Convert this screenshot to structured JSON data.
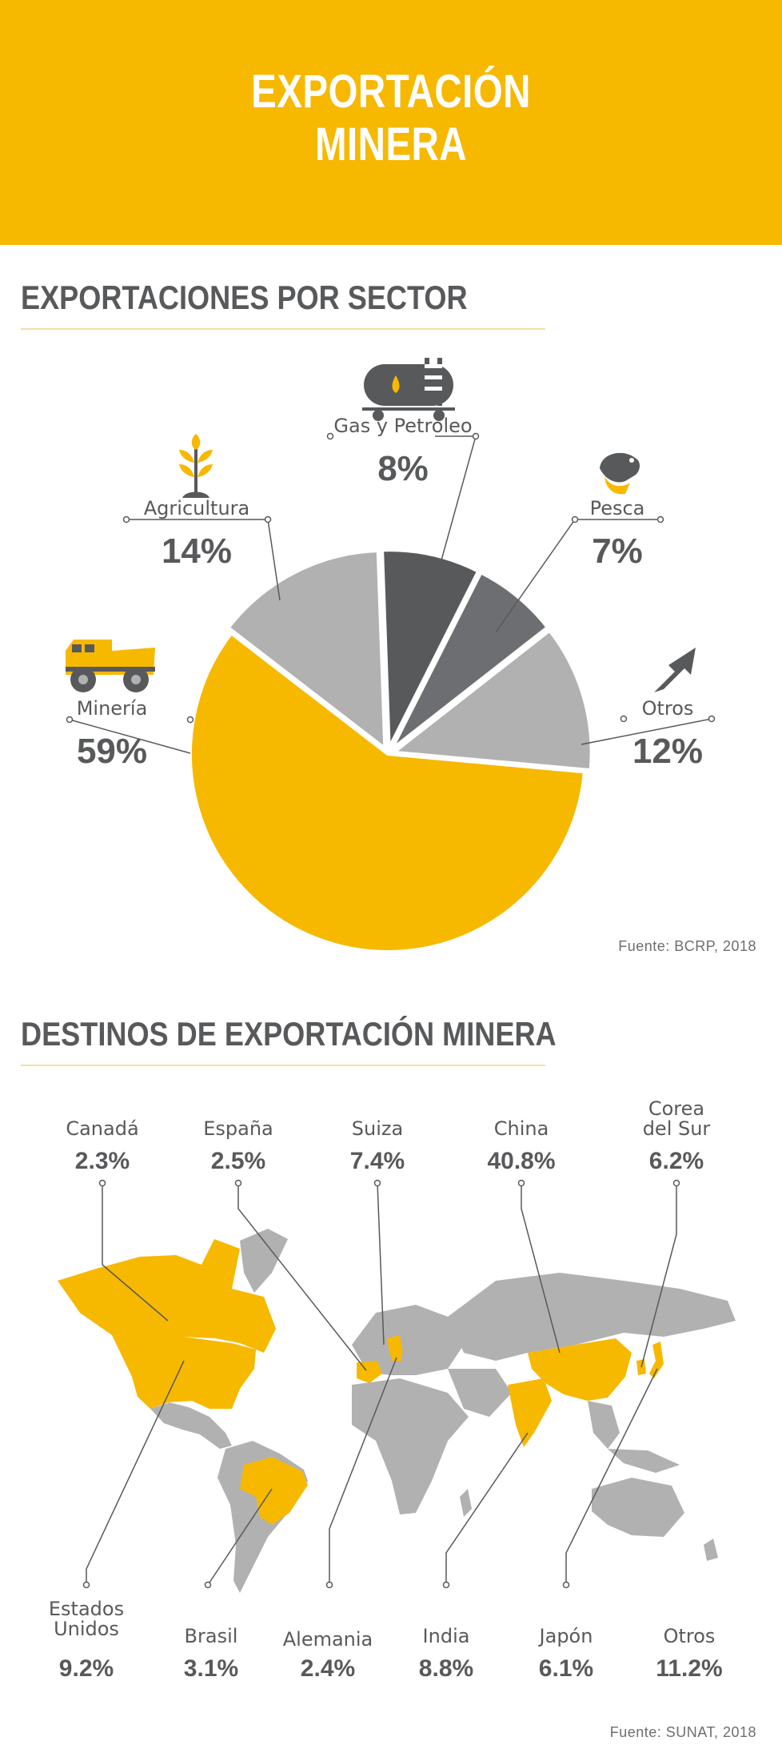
{
  "header": {
    "title_line1": "EXPORTACIÓN",
    "title_line2": "MINERA"
  },
  "colors": {
    "brand_yellow": "#f7b800",
    "light_grey": "#b1b1b1",
    "dark_grey": "#58595b",
    "mid_grey": "#6d6e71",
    "text_grey": "#58595b"
  },
  "icons": {
    "mineria": "dump-truck-icon",
    "agricultura": "plant-icon",
    "gas_petroleo": "tanker-icon",
    "pesca": "fish-icon",
    "otros": "arrow-up-right-icon"
  },
  "chart_data": [
    {
      "type": "pie",
      "title": "EXPORTACIONES POR SECTOR",
      "source": "Fuente: BCRP, 2018",
      "slices": [
        {
          "label": "Gas y Petróleo",
          "value": 8,
          "value_label": "8%",
          "color": "#58595b"
        },
        {
          "label": "Pesca",
          "value": 7,
          "value_label": "7%",
          "color": "#6d6e71"
        },
        {
          "label": "Otros",
          "value": 12,
          "value_label": "12%",
          "color": "#b1b1b1"
        },
        {
          "label": "Minería",
          "value": 59,
          "value_label": "59%",
          "color": "#f7b800"
        },
        {
          "label": "Agricultura",
          "value": 14,
          "value_label": "14%",
          "color": "#b1b1b1"
        }
      ]
    },
    {
      "type": "table",
      "title": "DESTINOS DE EXPORTACIÓN MINERA",
      "source": "Fuente: SUNAT, 2018",
      "top_row": [
        {
          "name": "Canadá",
          "value": "2.3%"
        },
        {
          "name": "España",
          "value": "2.5%"
        },
        {
          "name": "Suiza",
          "value": "7.4%"
        },
        {
          "name": "China",
          "value": "40.8%"
        },
        {
          "name_line1": "Corea",
          "name_line2": "del Sur",
          "value": "6.2%"
        }
      ],
      "bottom_row": [
        {
          "name_line1": "Estados",
          "name_line2": "Unidos",
          "value": "9.2%"
        },
        {
          "name": "Brasil",
          "value": "3.1%"
        },
        {
          "name": "Alemania",
          "value": "2.4%"
        },
        {
          "name": "India",
          "value": "8.8%"
        },
        {
          "name": "Japón",
          "value": "6.1%"
        },
        {
          "name": "Otros",
          "value": "11.2%"
        }
      ]
    }
  ]
}
